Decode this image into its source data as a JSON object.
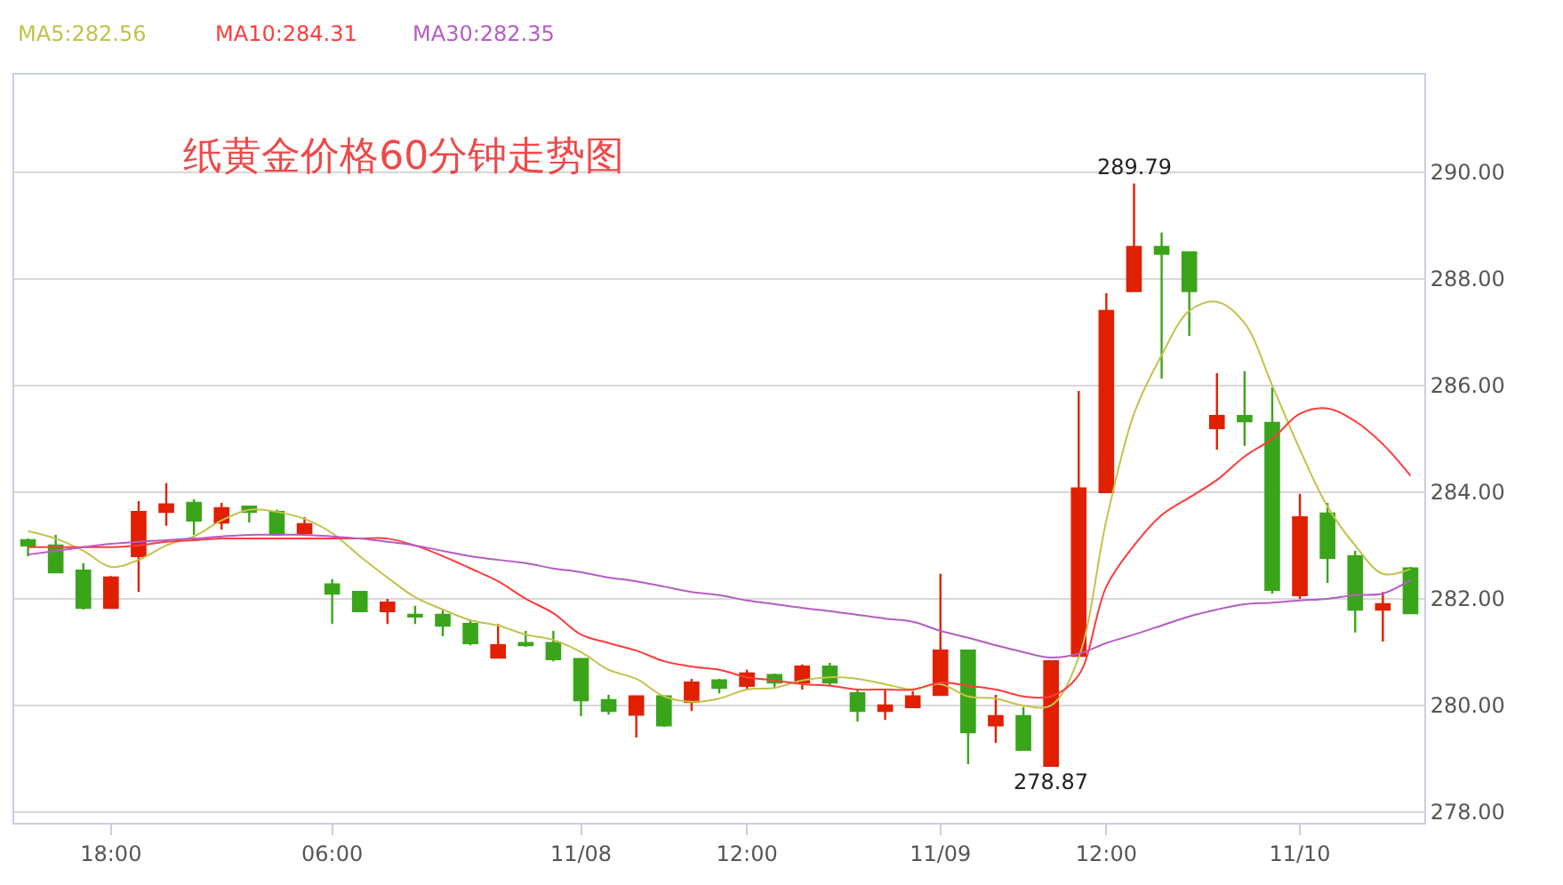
{
  "chart_data": {
    "type": "candlestick",
    "title": "纸黄金价格60分钟走势图",
    "categories": [
      null,
      null,
      null,
      "18:00",
      null,
      null,
      null,
      null,
      null,
      null,
      null,
      "06:00",
      null,
      null,
      null,
      null,
      null,
      null,
      null,
      null,
      "11/08",
      null,
      null,
      null,
      null,
      null,
      "12:00",
      null,
      null,
      null,
      null,
      null,
      null,
      "11/09",
      null,
      null,
      null,
      null,
      null,
      "12:00",
      null,
      null,
      null,
      null,
      null,
      null,
      "11/10",
      null,
      null,
      null,
      null
    ],
    "ohlc": [
      [
        283.1,
        283.13,
        282.8,
        283.0
      ],
      [
        283.0,
        283.2,
        282.5,
        282.5
      ],
      [
        282.53,
        282.67,
        281.8,
        281.83
      ],
      [
        281.83,
        282.43,
        281.83,
        282.4
      ],
      [
        282.8,
        283.83,
        282.13,
        283.63
      ],
      [
        283.63,
        284.17,
        283.37,
        283.77
      ],
      [
        283.8,
        283.87,
        283.2,
        283.47
      ],
      [
        283.43,
        283.8,
        283.3,
        283.7
      ],
      [
        283.73,
        283.73,
        283.43,
        283.63
      ],
      [
        283.63,
        283.67,
        283.23,
        283.23
      ],
      [
        283.23,
        283.53,
        283.23,
        283.4
      ],
      [
        282.27,
        282.37,
        281.53,
        282.1
      ],
      [
        282.13,
        282.13,
        281.77,
        281.77
      ],
      [
        281.77,
        282.0,
        281.53,
        281.93
      ],
      [
        281.7,
        281.87,
        281.53,
        281.67
      ],
      [
        281.7,
        281.8,
        281.3,
        281.5
      ],
      [
        281.53,
        281.6,
        281.13,
        281.17
      ],
      [
        280.9,
        281.53,
        280.9,
        281.13
      ],
      [
        281.17,
        281.4,
        281.1,
        281.13
      ],
      [
        281.17,
        281.4,
        280.83,
        280.87
      ],
      [
        280.87,
        280.87,
        279.8,
        280.1
      ],
      [
        280.1,
        280.2,
        279.83,
        279.9
      ],
      [
        279.83,
        280.17,
        279.4,
        280.17
      ],
      [
        280.17,
        280.17,
        279.6,
        279.63
      ],
      [
        280.07,
        280.5,
        279.9,
        280.43
      ],
      [
        280.47,
        280.5,
        280.23,
        280.33
      ],
      [
        280.37,
        280.67,
        280.3,
        280.6
      ],
      [
        280.57,
        280.6,
        280.33,
        280.43
      ],
      [
        280.43,
        280.77,
        280.3,
        280.73
      ],
      [
        280.73,
        280.8,
        280.37,
        280.43
      ],
      [
        280.23,
        280.3,
        279.7,
        279.9
      ],
      [
        279.9,
        280.3,
        279.73,
        280.0
      ],
      [
        279.97,
        280.27,
        279.97,
        280.17
      ],
      [
        280.2,
        282.47,
        280.2,
        281.03
      ],
      [
        281.03,
        281.03,
        278.9,
        279.5
      ],
      [
        279.63,
        280.2,
        279.3,
        279.8
      ],
      [
        279.8,
        279.97,
        279.17,
        279.17
      ],
      [
        278.87,
        280.83,
        278.87,
        280.83
      ],
      [
        280.93,
        285.9,
        280.93,
        284.07
      ],
      [
        284.0,
        287.73,
        284.0,
        287.4
      ],
      [
        287.77,
        289.79,
        287.77,
        288.6
      ],
      [
        288.6,
        288.87,
        286.13,
        288.47
      ],
      [
        288.5,
        288.5,
        286.93,
        287.77
      ],
      [
        285.2,
        286.23,
        284.8,
        285.43
      ],
      [
        285.43,
        286.27,
        284.87,
        285.33
      ],
      [
        285.3,
        285.97,
        282.1,
        282.17
      ],
      [
        282.07,
        283.97,
        282.0,
        283.53
      ],
      [
        283.6,
        283.8,
        282.3,
        282.77
      ],
      [
        282.8,
        282.9,
        281.37,
        281.8
      ],
      [
        281.8,
        282.13,
        281.2,
        281.9
      ],
      [
        282.57,
        282.6,
        281.73,
        281.73
      ]
    ],
    "colors": [
      "#3aa51a",
      "#3aa51a",
      "#3aa51a",
      "#e02000",
      "#e02000",
      "#e02000",
      "#3aa51a",
      "#e02000",
      "#3aa51a",
      "#3aa51a",
      "#e02000",
      "#3aa51a",
      "#3aa51a",
      "#e02000",
      "#3aa51a",
      "#3aa51a",
      "#3aa51a",
      "#e02000",
      "#3aa51a",
      "#3aa51a",
      "#3aa51a",
      "#3aa51a",
      "#e02000",
      "#3aa51a",
      "#e02000",
      "#3aa51a",
      "#e02000",
      "#3aa51a",
      "#e02000",
      "#3aa51a",
      "#3aa51a",
      "#e02000",
      "#e02000",
      "#e02000",
      "#3aa51a",
      "#e02000",
      "#3aa51a",
      "#e02000",
      "#e02000",
      "#e02000",
      "#e02000",
      "#3aa51a",
      "#3aa51a",
      "#e02000",
      "#3aa51a",
      "#3aa51a",
      "#e02000",
      "#3aa51a",
      "#3aa51a",
      "#e02000",
      "#3aa51a"
    ],
    "series": [
      {
        "name": "MA5:282.56",
        "type": "line",
        "color": "#c2c24a",
        "values": [
          283.27,
          283.13,
          282.9,
          282.6,
          282.73,
          283.0,
          283.17,
          283.47,
          283.67,
          283.63,
          283.5,
          283.23,
          282.8,
          282.4,
          282.03,
          281.8,
          281.6,
          281.5,
          281.33,
          281.23,
          281.0,
          280.67,
          280.5,
          280.17,
          280.07,
          280.13,
          280.3,
          280.33,
          280.47,
          280.53,
          280.5,
          280.4,
          280.3,
          280.4,
          280.17,
          280.13,
          280.0,
          280.0,
          280.9,
          283.47,
          285.47,
          286.57,
          287.4,
          287.57,
          287.17,
          286.0,
          284.8,
          283.73,
          283.0,
          282.47,
          282.56
        ]
      },
      {
        "name": "MA10:284.31",
        "type": "line",
        "color": "#ff3b3b",
        "values": [
          282.97,
          282.97,
          282.97,
          282.97,
          283.0,
          283.07,
          283.1,
          283.13,
          283.13,
          283.13,
          283.13,
          283.13,
          283.13,
          283.13,
          283.0,
          282.8,
          282.57,
          282.33,
          282.0,
          281.73,
          281.33,
          281.17,
          281.03,
          280.83,
          280.73,
          280.67,
          280.53,
          280.47,
          280.4,
          280.37,
          280.3,
          280.3,
          280.3,
          280.43,
          280.37,
          280.3,
          280.17,
          280.17,
          280.57,
          282.23,
          283.0,
          283.57,
          283.9,
          284.23,
          284.67,
          285.0,
          285.47,
          285.57,
          285.33,
          284.9,
          284.31
        ]
      },
      {
        "name": "MA30:282.35",
        "type": "line",
        "color": "#b45cc4",
        "values": [
          282.83,
          282.9,
          282.97,
          283.03,
          283.07,
          283.1,
          283.13,
          283.17,
          283.2,
          283.2,
          283.2,
          283.17,
          283.13,
          283.07,
          283.0,
          282.9,
          282.8,
          282.73,
          282.67,
          282.57,
          282.5,
          282.4,
          282.33,
          282.23,
          282.13,
          282.07,
          281.97,
          281.9,
          281.83,
          281.77,
          281.7,
          281.63,
          281.57,
          281.4,
          281.27,
          281.13,
          281.0,
          280.9,
          280.97,
          281.17,
          281.33,
          281.5,
          281.67,
          281.8,
          281.9,
          281.93,
          281.97,
          282.0,
          282.07,
          282.1,
          282.35
        ]
      }
    ],
    "annotations": [
      {
        "text": "289.79",
        "y": 289.79
      },
      {
        "text": "278.87",
        "y": 278.87
      }
    ],
    "ylim": [
      277.8,
      291.83
    ],
    "yticks": [
      {
        "value": 278,
        "label": "278.00"
      },
      {
        "value": 280,
        "label": "280.00"
      },
      {
        "value": 282,
        "label": "282.00"
      },
      {
        "value": 284,
        "label": "284.00"
      },
      {
        "value": 286,
        "label": "286.00"
      },
      {
        "value": 288,
        "label": "288.00"
      },
      {
        "value": 290,
        "label": "290.00"
      }
    ],
    "grid": "y"
  }
}
